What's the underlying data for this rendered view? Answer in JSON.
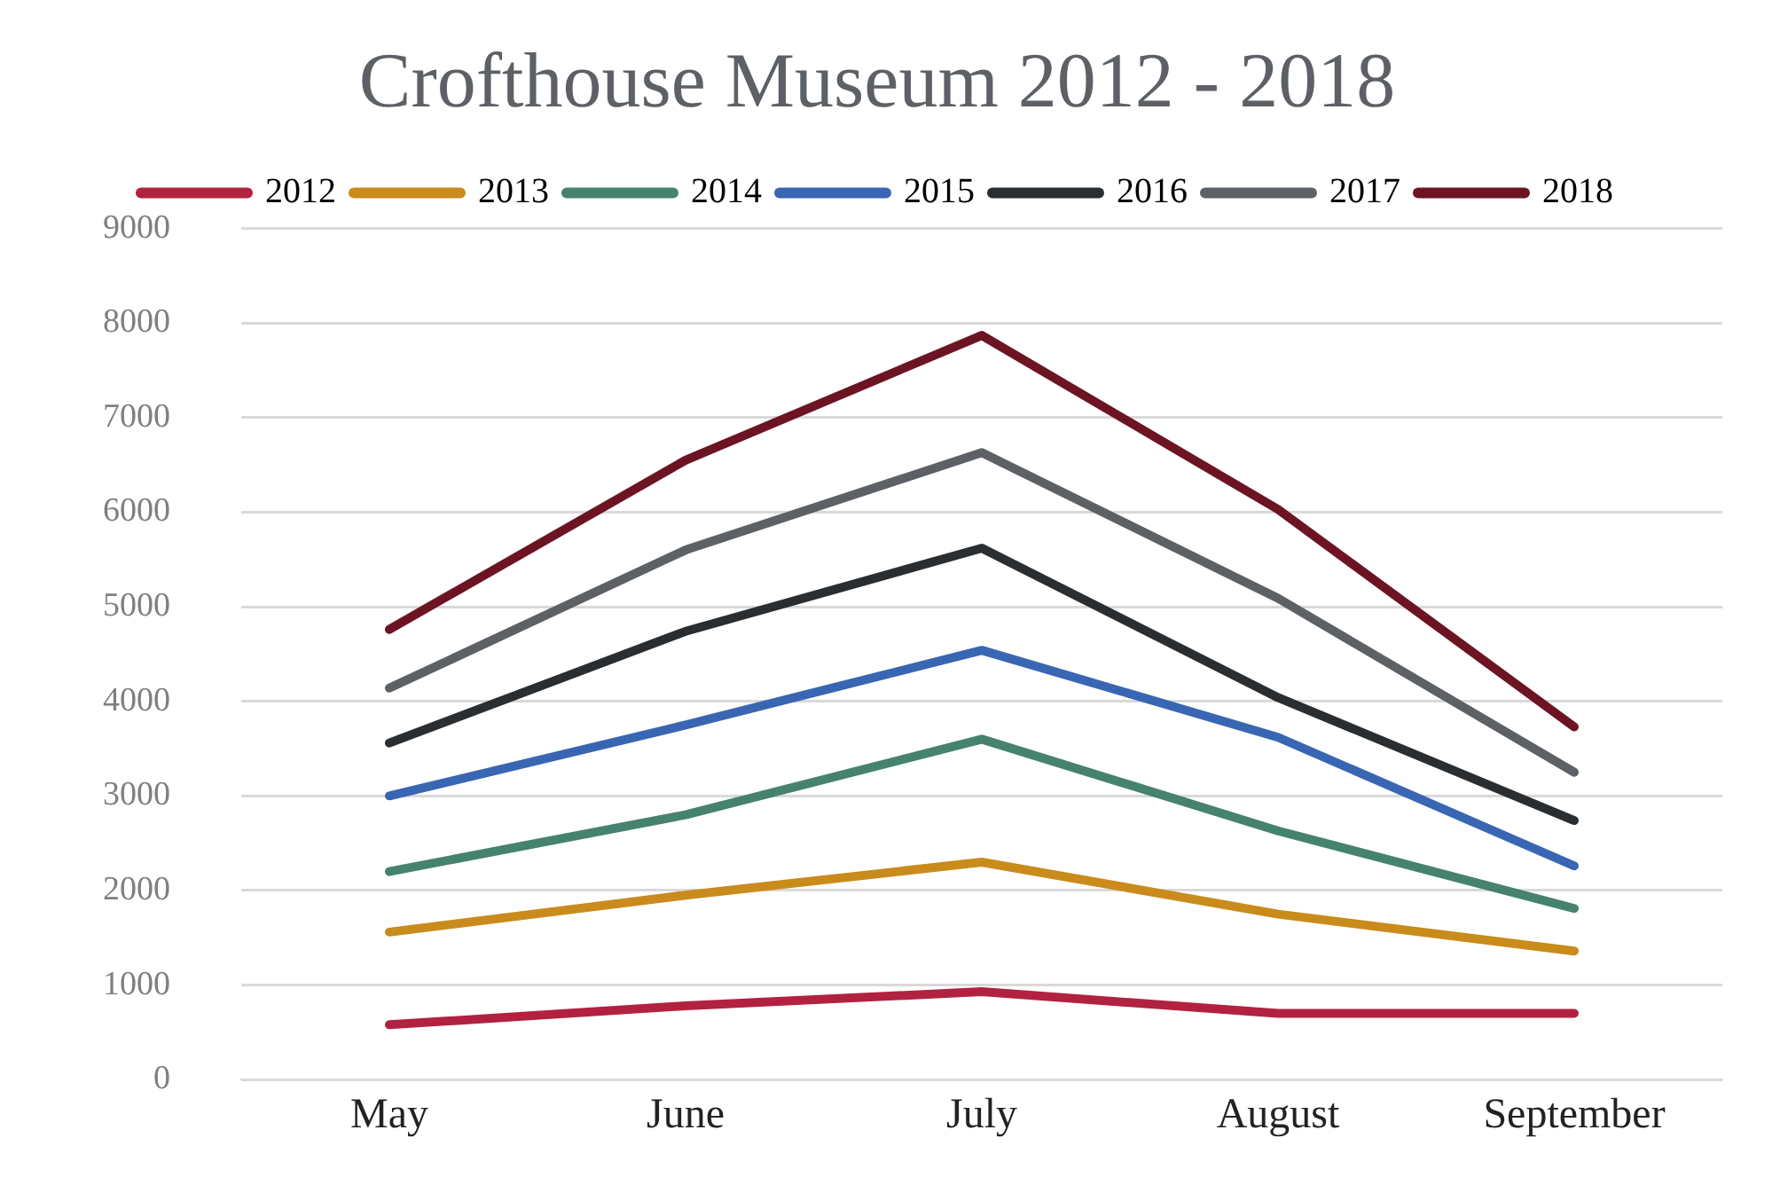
{
  "chart_data": {
    "type": "line",
    "title": "Crofthouse Museum 2012 - 2018",
    "categories": [
      "May",
      "June",
      "July",
      "August",
      "September"
    ],
    "series": [
      {
        "name": "2012",
        "color": "#b22240",
        "values": [
          580,
          780,
          930,
          700,
          700
        ]
      },
      {
        "name": "2013",
        "color": "#c98b1c",
        "values": [
          1560,
          1950,
          2300,
          1750,
          1360
        ]
      },
      {
        "name": "2014",
        "color": "#468270",
        "values": [
          2200,
          2800,
          3600,
          2630,
          1810
        ]
      },
      {
        "name": "2015",
        "color": "#3966b2",
        "values": [
          3000,
          3750,
          4540,
          3620,
          2260
        ]
      },
      {
        "name": "2016",
        "color": "#2a2e31",
        "values": [
          3560,
          4740,
          5620,
          4040,
          2740
        ]
      },
      {
        "name": "2017",
        "color": "#5d6166",
        "values": [
          4140,
          5600,
          6630,
          5090,
          3250
        ]
      },
      {
        "name": "2018",
        "color": "#6c1424",
        "values": [
          4760,
          6550,
          7870,
          6030,
          3730
        ]
      }
    ],
    "ylim": [
      0,
      9000
    ],
    "yticks": [
      0,
      1000,
      2000,
      3000,
      4000,
      5000,
      6000,
      7000,
      8000,
      9000
    ],
    "grid": "y",
    "legend": "top",
    "marker": "none",
    "line_style": "solid"
  }
}
